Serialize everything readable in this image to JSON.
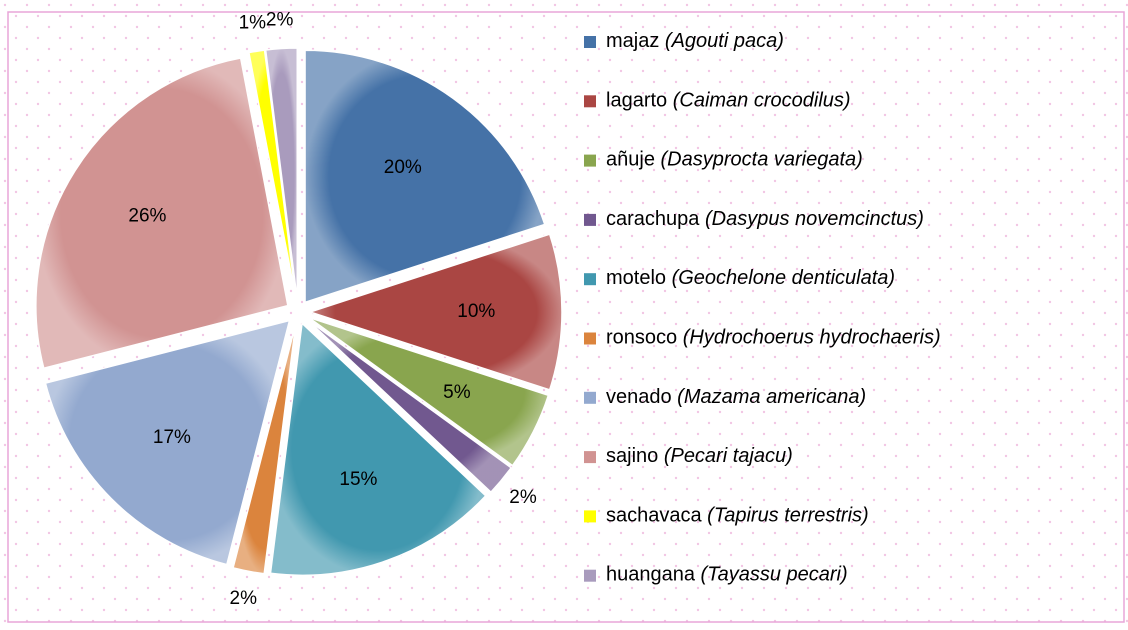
{
  "chart_data": {
    "type": "pie",
    "categories": [
      "majaz (Agouti paca)",
      "lagarto (Caiman crocodilus)",
      "añuje (Dasyprocta variegata)",
      "carachupa (Dasypus novemcinctus)",
      "motelo (Geochelone denticulata)",
      "ronsoco (Hydrochoerus hydrochaeris)",
      "venado (Mazama americana)",
      "sajino (Pecari tajacu)",
      "sachavaca (Tapirus terrestris)",
      "huangana (Tayassu pecari)"
    ],
    "values": [
      20,
      10,
      5,
      2,
      15,
      2,
      17,
      26,
      1,
      2
    ],
    "value_labels": [
      "20%",
      "10%",
      "5%",
      "2%",
      "15%",
      "2%",
      "17%",
      "26%",
      "1%",
      "2%"
    ],
    "colors": [
      "#4572a7",
      "#aa4643",
      "#89a54e",
      "#71588f",
      "#4198af",
      "#db843d",
      "#93a9cf",
      "#d19392",
      "#ffff00",
      "#a99bbd"
    ],
    "legend": "right"
  }
}
